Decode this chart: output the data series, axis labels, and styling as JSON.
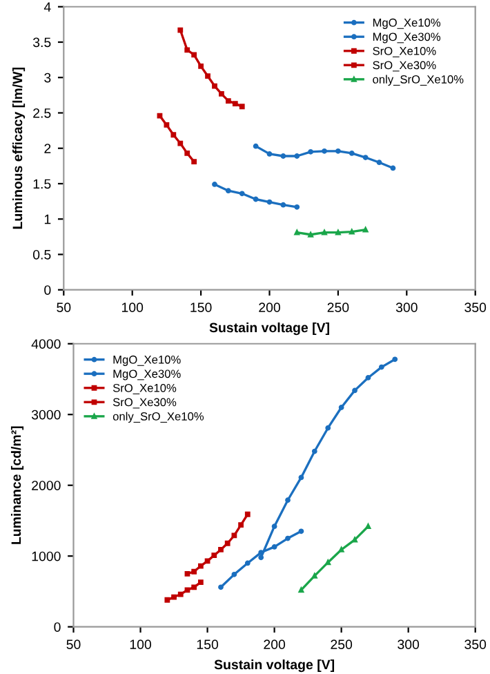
{
  "chart_data": [
    {
      "type": "line",
      "xlabel": "Sustain voltage [V]",
      "ylabel": "Luminous efficacy [lm/W]",
      "xlim": [
        50,
        350
      ],
      "xticks": [
        50,
        100,
        150,
        200,
        250,
        300,
        350
      ],
      "ylim": [
        0,
        4
      ],
      "yticks": [
        0,
        0.5,
        1,
        1.5,
        2,
        2.5,
        3,
        3.5,
        4
      ],
      "grid": false,
      "legend": "top right",
      "line_style": "solid",
      "series": [
        {
          "name": "MgO_Xe10%",
          "color": "#1b6fbf",
          "marker": "circle",
          "x": [
            160,
            170,
            180,
            190,
            200,
            210,
            220
          ],
          "values": [
            1.49,
            1.4,
            1.36,
            1.28,
            1.24,
            1.2,
            1.17
          ]
        },
        {
          "name": "MgO_Xe30%",
          "color": "#1b6fbf",
          "marker": "circle",
          "x": [
            190,
            200,
            210,
            220,
            230,
            240,
            250,
            260,
            270,
            280,
            290
          ],
          "values": [
            2.03,
            1.92,
            1.89,
            1.89,
            1.95,
            1.96,
            1.96,
            1.93,
            1.87,
            1.8,
            1.72
          ]
        },
        {
          "name": "SrO_Xe10%",
          "color": "#c00000",
          "marker": "square",
          "x": [
            120,
            125,
            130,
            135,
            140,
            145
          ],
          "values": [
            2.46,
            2.33,
            2.19,
            2.07,
            1.93,
            1.81
          ]
        },
        {
          "name": "SrO_Xe30%",
          "color": "#c00000",
          "marker": "square",
          "x": [
            135,
            140,
            145,
            150,
            155,
            160,
            165,
            170,
            175,
            180
          ],
          "values": [
            3.67,
            3.39,
            3.32,
            3.16,
            3.02,
            2.88,
            2.77,
            2.67,
            2.63,
            2.59
          ]
        },
        {
          "name": "only_SrO_Xe10%",
          "color": "#1aa64a",
          "marker": "triangle",
          "x": [
            220,
            230,
            240,
            250,
            260,
            270
          ],
          "values": [
            0.81,
            0.78,
            0.81,
            0.81,
            0.82,
            0.85
          ]
        }
      ]
    },
    {
      "type": "line",
      "xlabel": "Sustain voltage [V]",
      "ylabel": "Luminance [cd/m²]",
      "xlim": [
        50,
        350
      ],
      "xticks": [
        50,
        100,
        150,
        200,
        250,
        300,
        350
      ],
      "ylim": [
        0,
        4000
      ],
      "yticks": [
        0,
        1000,
        2000,
        3000,
        4000
      ],
      "grid": false,
      "legend": "top left",
      "line_style": "solid",
      "series": [
        {
          "name": "MgO_Xe10%",
          "color": "#1b6fbf",
          "marker": "circle",
          "x": [
            160,
            170,
            180,
            190,
            200,
            210,
            220
          ],
          "values": [
            560,
            740,
            900,
            1050,
            1130,
            1250,
            1350
          ]
        },
        {
          "name": "MgO_Xe30%",
          "color": "#1b6fbf",
          "marker": "circle",
          "x": [
            190,
            200,
            210,
            220,
            230,
            240,
            250,
            260,
            270,
            280,
            290
          ],
          "values": [
            980,
            1420,
            1790,
            2110,
            2480,
            2810,
            3100,
            3340,
            3520,
            3670,
            3780
          ]
        },
        {
          "name": "SrO_Xe10%",
          "color": "#c00000",
          "marker": "square",
          "x": [
            120,
            125,
            130,
            135,
            140,
            145
          ],
          "values": [
            380,
            420,
            460,
            520,
            560,
            630
          ]
        },
        {
          "name": "SrO_Xe30%",
          "color": "#c00000",
          "marker": "square",
          "x": [
            135,
            140,
            145,
            150,
            155,
            160,
            165,
            170,
            175,
            180
          ],
          "values": [
            750,
            780,
            860,
            930,
            1010,
            1090,
            1180,
            1290,
            1440,
            1590
          ]
        },
        {
          "name": "only_SrO_Xe10%",
          "color": "#1aa64a",
          "marker": "triangle",
          "x": [
            220,
            230,
            240,
            250,
            260,
            270
          ],
          "values": [
            520,
            720,
            910,
            1090,
            1230,
            1420
          ]
        }
      ]
    }
  ]
}
